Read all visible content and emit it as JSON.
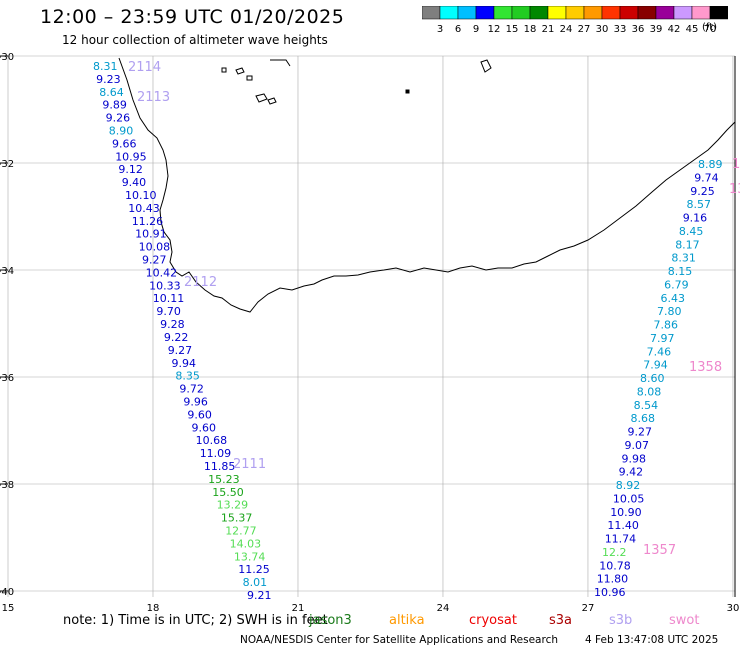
{
  "header": {
    "title": "12:00 – 23:59 UTC 01/20/2025",
    "subtitle": "12 hour collection of altimeter wave heights"
  },
  "color_scale": {
    "unit": "(ft)",
    "labels": [
      "3",
      "6",
      "9",
      "12",
      "15",
      "18",
      "21",
      "24",
      "27",
      "30",
      "33",
      "36",
      "39",
      "42",
      "45",
      "70"
    ],
    "colors": [
      "#7f7f7f",
      "#00ffff",
      "#00bfff",
      "#0000ff",
      "#33e533",
      "#22cc22",
      "#008800",
      "#ffff00",
      "#ffcc00",
      "#ff9900",
      "#ff3300",
      "#cc0000",
      "#880000",
      "#990099",
      "#cc99ff",
      "#ff99cc",
      "#000000"
    ]
  },
  "map": {
    "lat_labels": [
      "-30",
      "-32",
      "-34",
      "-36",
      "-38",
      "-40"
    ],
    "lon_labels": [
      "15",
      "18",
      "21",
      "24",
      "27",
      "30"
    ],
    "lat_values": [
      -30,
      -32,
      -34,
      -36,
      -38,
      -40
    ],
    "lon_values": [
      15,
      18,
      21,
      24,
      27,
      30
    ]
  },
  "tracks": [
    {
      "color_key": "west",
      "readings": [
        {
          "text": "8.31",
          "color": "#0099cc"
        },
        {
          "text": "9.23",
          "color": "#0000cc"
        },
        {
          "text": "8.64",
          "color": "#0099cc"
        },
        {
          "text": "9.89",
          "color": "#0000cc"
        },
        {
          "text": "9.26",
          "color": "#0000cc"
        },
        {
          "text": "8.90",
          "color": "#0099cc"
        },
        {
          "text": "9.66",
          "color": "#0000cc"
        },
        {
          "text": "10.95",
          "color": "#0000cc"
        },
        {
          "text": "9.12",
          "color": "#0000cc"
        },
        {
          "text": "9.40",
          "color": "#0000cc"
        },
        {
          "text": "10.10",
          "color": "#0000cc"
        },
        {
          "text": "10.43",
          "color": "#0000cc"
        },
        {
          "text": "11.26",
          "color": "#0000cc"
        },
        {
          "text": "10.91",
          "color": "#0000cc"
        },
        {
          "text": "10.08",
          "color": "#0000cc"
        },
        {
          "text": "9.27",
          "color": "#0000cc"
        },
        {
          "text": "10.42",
          "color": "#0000cc"
        },
        {
          "text": "10.33",
          "color": "#0000cc"
        },
        {
          "text": "10.11",
          "color": "#0000cc"
        },
        {
          "text": "9.70",
          "color": "#0000cc"
        },
        {
          "text": "9.28",
          "color": "#0000cc"
        },
        {
          "text": "9.22",
          "color": "#0000cc"
        },
        {
          "text": "9.27",
          "color": "#0000cc"
        },
        {
          "text": "9.94",
          "color": "#0000cc"
        },
        {
          "text": "8.35",
          "color": "#0099cc"
        },
        {
          "text": "9.72",
          "color": "#0000cc"
        },
        {
          "text": "9.96",
          "color": "#0000cc"
        },
        {
          "text": "9.60",
          "color": "#0000cc"
        },
        {
          "text": "9.60",
          "color": "#0000cc"
        },
        {
          "text": "10.68",
          "color": "#0000cc"
        },
        {
          "text": "11.09",
          "color": "#0000cc"
        },
        {
          "text": "11.85",
          "color": "#0000cc"
        },
        {
          "text": "15.23",
          "color": "#1aa31a"
        },
        {
          "text": "15.50",
          "color": "#1aa31a"
        },
        {
          "text": "13.29",
          "color": "#55dd55"
        },
        {
          "text": "15.37",
          "color": "#1aa31a"
        },
        {
          "text": "12.77",
          "color": "#55dd55"
        },
        {
          "text": "14.03",
          "color": "#55dd55"
        },
        {
          "text": "13.74",
          "color": "#55dd55"
        },
        {
          "text": "11.25",
          "color": "#0000cc"
        },
        {
          "text": "8.01",
          "color": "#0099cc"
        },
        {
          "text": "9.21",
          "color": "#0000cc"
        }
      ]
    },
    {
      "color_key": "east",
      "readings": [
        {
          "text": "8.89",
          "color": "#0099cc"
        },
        {
          "text": "9.74",
          "color": "#0000cc"
        },
        {
          "text": "9.25",
          "color": "#0000cc"
        },
        {
          "text": "8.57",
          "color": "#0099cc"
        },
        {
          "text": "9.16",
          "color": "#0000cc"
        },
        {
          "text": "8.45",
          "color": "#0099cc"
        },
        {
          "text": "8.17",
          "color": "#0099cc"
        },
        {
          "text": "8.31",
          "color": "#0099cc"
        },
        {
          "text": "8.15",
          "color": "#0099cc"
        },
        {
          "text": "6.79",
          "color": "#0099cc"
        },
        {
          "text": "6.43",
          "color": "#0099cc"
        },
        {
          "text": "7.80",
          "color": "#0099cc"
        },
        {
          "text": "7.86",
          "color": "#0099cc"
        },
        {
          "text": "7.97",
          "color": "#0099cc"
        },
        {
          "text": "7.46",
          "color": "#0099cc"
        },
        {
          "text": "7.94",
          "color": "#0099cc"
        },
        {
          "text": "8.60",
          "color": "#0099cc"
        },
        {
          "text": "8.08",
          "color": "#0099cc"
        },
        {
          "text": "8.54",
          "color": "#0099cc"
        },
        {
          "text": "8.68",
          "color": "#0099cc"
        },
        {
          "text": "9.27",
          "color": "#0000cc"
        },
        {
          "text": "9.07",
          "color": "#0000cc"
        },
        {
          "text": "9.98",
          "color": "#0000cc"
        },
        {
          "text": "9.42",
          "color": "#0000cc"
        },
        {
          "text": "8.92",
          "color": "#0099cc"
        },
        {
          "text": "10.05",
          "color": "#0000cc"
        },
        {
          "text": "10.90",
          "color": "#0000cc"
        },
        {
          "text": "11.40",
          "color": "#0000cc"
        },
        {
          "text": "11.74",
          "color": "#0000cc"
        },
        {
          "text": "12.2",
          "color": "#55dd55"
        },
        {
          "text": "10.78",
          "color": "#0000cc"
        },
        {
          "text": "11.80",
          "color": "#0000cc"
        },
        {
          "text": "10.96",
          "color": "#0000cc"
        }
      ]
    }
  ],
  "pass_labels": [
    {
      "text": "2114",
      "color": "#b0a0f0"
    },
    {
      "text": "2113",
      "color": "#b0a0f0"
    },
    {
      "text": "2112",
      "color": "#b0a0f0"
    },
    {
      "text": "2111",
      "color": "#b0a0f0"
    },
    {
      "text": "1358",
      "color": "#ee88cc"
    },
    {
      "text": "1357",
      "color": "#ee88cc"
    },
    {
      "text": "1",
      "color": "#ee88cc"
    },
    {
      "text": "13",
      "color": "#ee88cc"
    }
  ],
  "legend": {
    "note": "note:  1) Time is in UTC;  2) SWH is in feet",
    "satellites": [
      {
        "name": "jason3",
        "color": "#1a7a1a"
      },
      {
        "name": "altika",
        "color": "#ff9900"
      },
      {
        "name": "cryosat",
        "color": "#ee0000"
      },
      {
        "name": "s3a",
        "color": "#aa0000"
      },
      {
        "name": "s3b",
        "color": "#b0a0f0"
      },
      {
        "name": "swot",
        "color": "#ee88cc"
      }
    ]
  },
  "footer": {
    "credit": "NOAA/NESDIS Center for Satellite Applications and Research",
    "timestamp": "4 Feb 13:47:08 UTC 2025"
  }
}
